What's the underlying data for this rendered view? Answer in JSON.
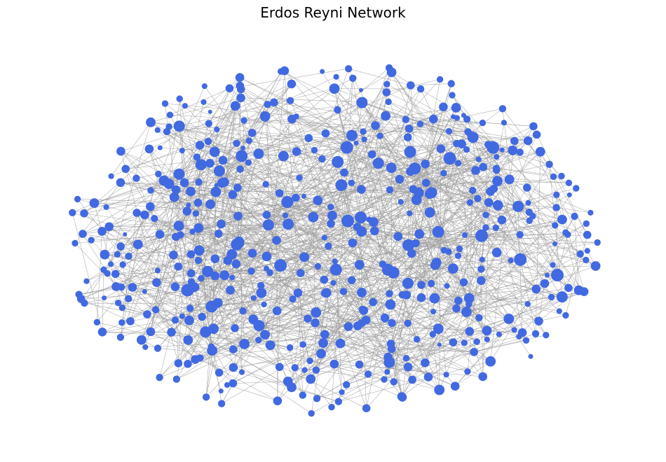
{
  "title": "Erdos Reyni Network",
  "colors": {
    "node": "#4169e1",
    "edge": "#9a9a9a",
    "background": "#ffffff"
  },
  "graph": {
    "type": "erdos-renyi",
    "node_count": 520,
    "average_degree": 5
  }
}
